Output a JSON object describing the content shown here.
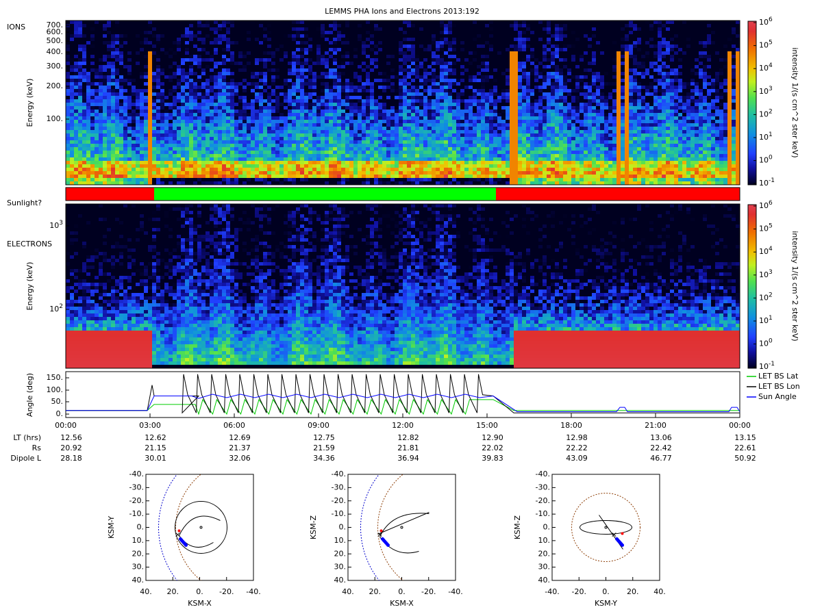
{
  "title": "LEMMS PHA Ions and Electrons  2013:192",
  "ions": {
    "label": "IONS",
    "ylabel": "Energy (keV)",
    "yticks": [
      "700.",
      "600.",
      "500.",
      "400.",
      "300.",
      "200.",
      "100."
    ],
    "colorbar": {
      "label": "intensity 1/(s cm^2 ster keV)",
      "ticks": [
        {
          "base": "10",
          "exp": "6"
        },
        {
          "base": "10",
          "exp": "5"
        },
        {
          "base": "10",
          "exp": "4"
        },
        {
          "base": "10",
          "exp": "3"
        },
        {
          "base": "10",
          "exp": "2"
        },
        {
          "base": "10",
          "exp": "1"
        },
        {
          "base": "10",
          "exp": "0"
        },
        {
          "base": "10",
          "exp": "-1"
        }
      ]
    }
  },
  "sunlight": {
    "label": "Sunlight?"
  },
  "electrons": {
    "label": "ELECTRONS",
    "ylabel": "Energy (keV)",
    "yticks": [
      {
        "base": "10",
        "exp": "3"
      },
      {
        "base": "10",
        "exp": "2"
      }
    ],
    "colorbar": {
      "label": "intensity 1/(s cm^2 ster keV)",
      "ticks": [
        {
          "base": "10",
          "exp": "6"
        },
        {
          "base": "10",
          "exp": "5"
        },
        {
          "base": "10",
          "exp": "4"
        },
        {
          "base": "10",
          "exp": "3"
        },
        {
          "base": "10",
          "exp": "2"
        },
        {
          "base": "10",
          "exp": "1"
        },
        {
          "base": "10",
          "exp": "0"
        },
        {
          "base": "10",
          "exp": "-1"
        }
      ]
    }
  },
  "angle": {
    "ylabel": "Angle (deg)",
    "yticks": [
      "150.",
      "100.",
      "50.",
      "0."
    ],
    "legend": [
      "LET BS Lat",
      "LET BS Lon",
      "Sun Angle"
    ]
  },
  "time_axis": {
    "ticks": [
      "00:00",
      "03:00",
      "06:00",
      "09:00",
      "12:00",
      "15:00",
      "18:00",
      "21:00",
      "00:00"
    ],
    "rows": [
      {
        "label": "LT (hrs)",
        "values": [
          "12.56",
          "12.62",
          "12.69",
          "12.75",
          "12.82",
          "12.90",
          "12.98",
          "13.06",
          "13.15"
        ]
      },
      {
        "label": "Rs",
        "values": [
          "20.92",
          "21.15",
          "21.37",
          "21.59",
          "21.81",
          "22.02",
          "22.22",
          "22.42",
          "22.61"
        ]
      },
      {
        "label": "Dipole L",
        "values": [
          "28.18",
          "30.01",
          "32.06",
          "34.36",
          "36.94",
          "39.83",
          "43.09",
          "46.77",
          "50.92"
        ]
      }
    ]
  },
  "orbits": [
    {
      "xlabel": "KSM-X",
      "ylabel": "KSM-Y",
      "xticks": [
        "40.",
        "20.",
        "0.",
        "-20.",
        "-40."
      ],
      "yticks": [
        "-40.",
        "-30.",
        "-20.",
        "-10.",
        "0.",
        "10.",
        "20.",
        "30.",
        "40."
      ]
    },
    {
      "xlabel": "KSM-X",
      "ylabel": "KSM-Z",
      "xticks": [
        "40.",
        "20.",
        "0.",
        "-20.",
        "-40."
      ],
      "yticks": [
        "-40.",
        "-30.",
        "-20.",
        "-10.",
        "0.",
        "10.",
        "20.",
        "30.",
        "40."
      ]
    },
    {
      "xlabel": "KSM-Y",
      "ylabel": "KSM-Z",
      "xticks": [
        "-40.",
        "-20.",
        "0.",
        "20.",
        "40."
      ],
      "yticks": [
        "-40.",
        "-30.",
        "-20.",
        "-10.",
        "0.",
        "10.",
        "20.",
        "30.",
        "40."
      ]
    }
  ]
}
